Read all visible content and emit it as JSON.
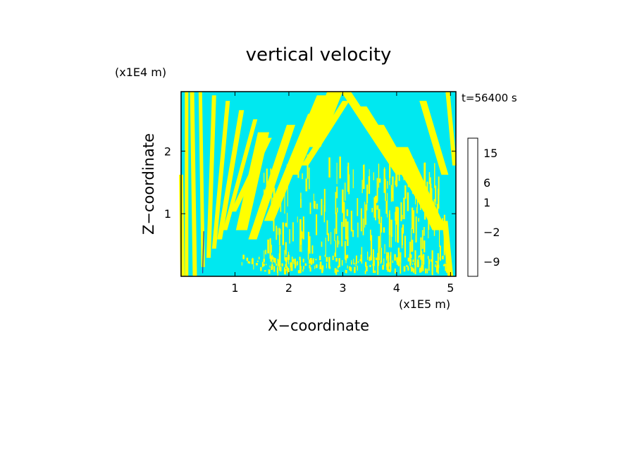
{
  "chart_data": {
    "type": "heatmap",
    "title": "vertical velocity",
    "xlabel": "X−coordinate",
    "ylabel": "Z−coordinate",
    "x_unit": "(x1E5 m)",
    "y_unit": "(x1E4 m)",
    "time_label": "t=56400 s",
    "xlim": [
      0,
      5.1
    ],
    "ylim": [
      0,
      2.95
    ],
    "xticks": [
      "1",
      "2",
      "3",
      "4",
      "5"
    ],
    "yticks": [
      "1",
      "2"
    ],
    "xtick_values": [
      1,
      2,
      3,
      4,
      5
    ],
    "ytick_values": [
      1,
      2
    ],
    "colorbar": {
      "tick_labels": [
        "15",
        "6",
        "1",
        "−2",
        "−9"
      ],
      "tick_levels": [
        15,
        6,
        1,
        -2,
        -9
      ],
      "levels": [
        -12,
        -9,
        -6,
        -3,
        -2,
        -1,
        0,
        1,
        3,
        6,
        9,
        12,
        15,
        18
      ],
      "colors": [
        "#e8109a",
        "#b8159e",
        "#8a15a8",
        "#1a0f90",
        "#0050e0",
        "#00ccff",
        "#00e8f0",
        "#ffff00",
        "#e0d000",
        "#f08000",
        "#e82000",
        "#f07060",
        "#f4b0b0",
        "#fff0f0"
      ]
    },
    "field_colors": {
      "negative": "#00e8f0",
      "positive": "#ffff00"
    }
  }
}
